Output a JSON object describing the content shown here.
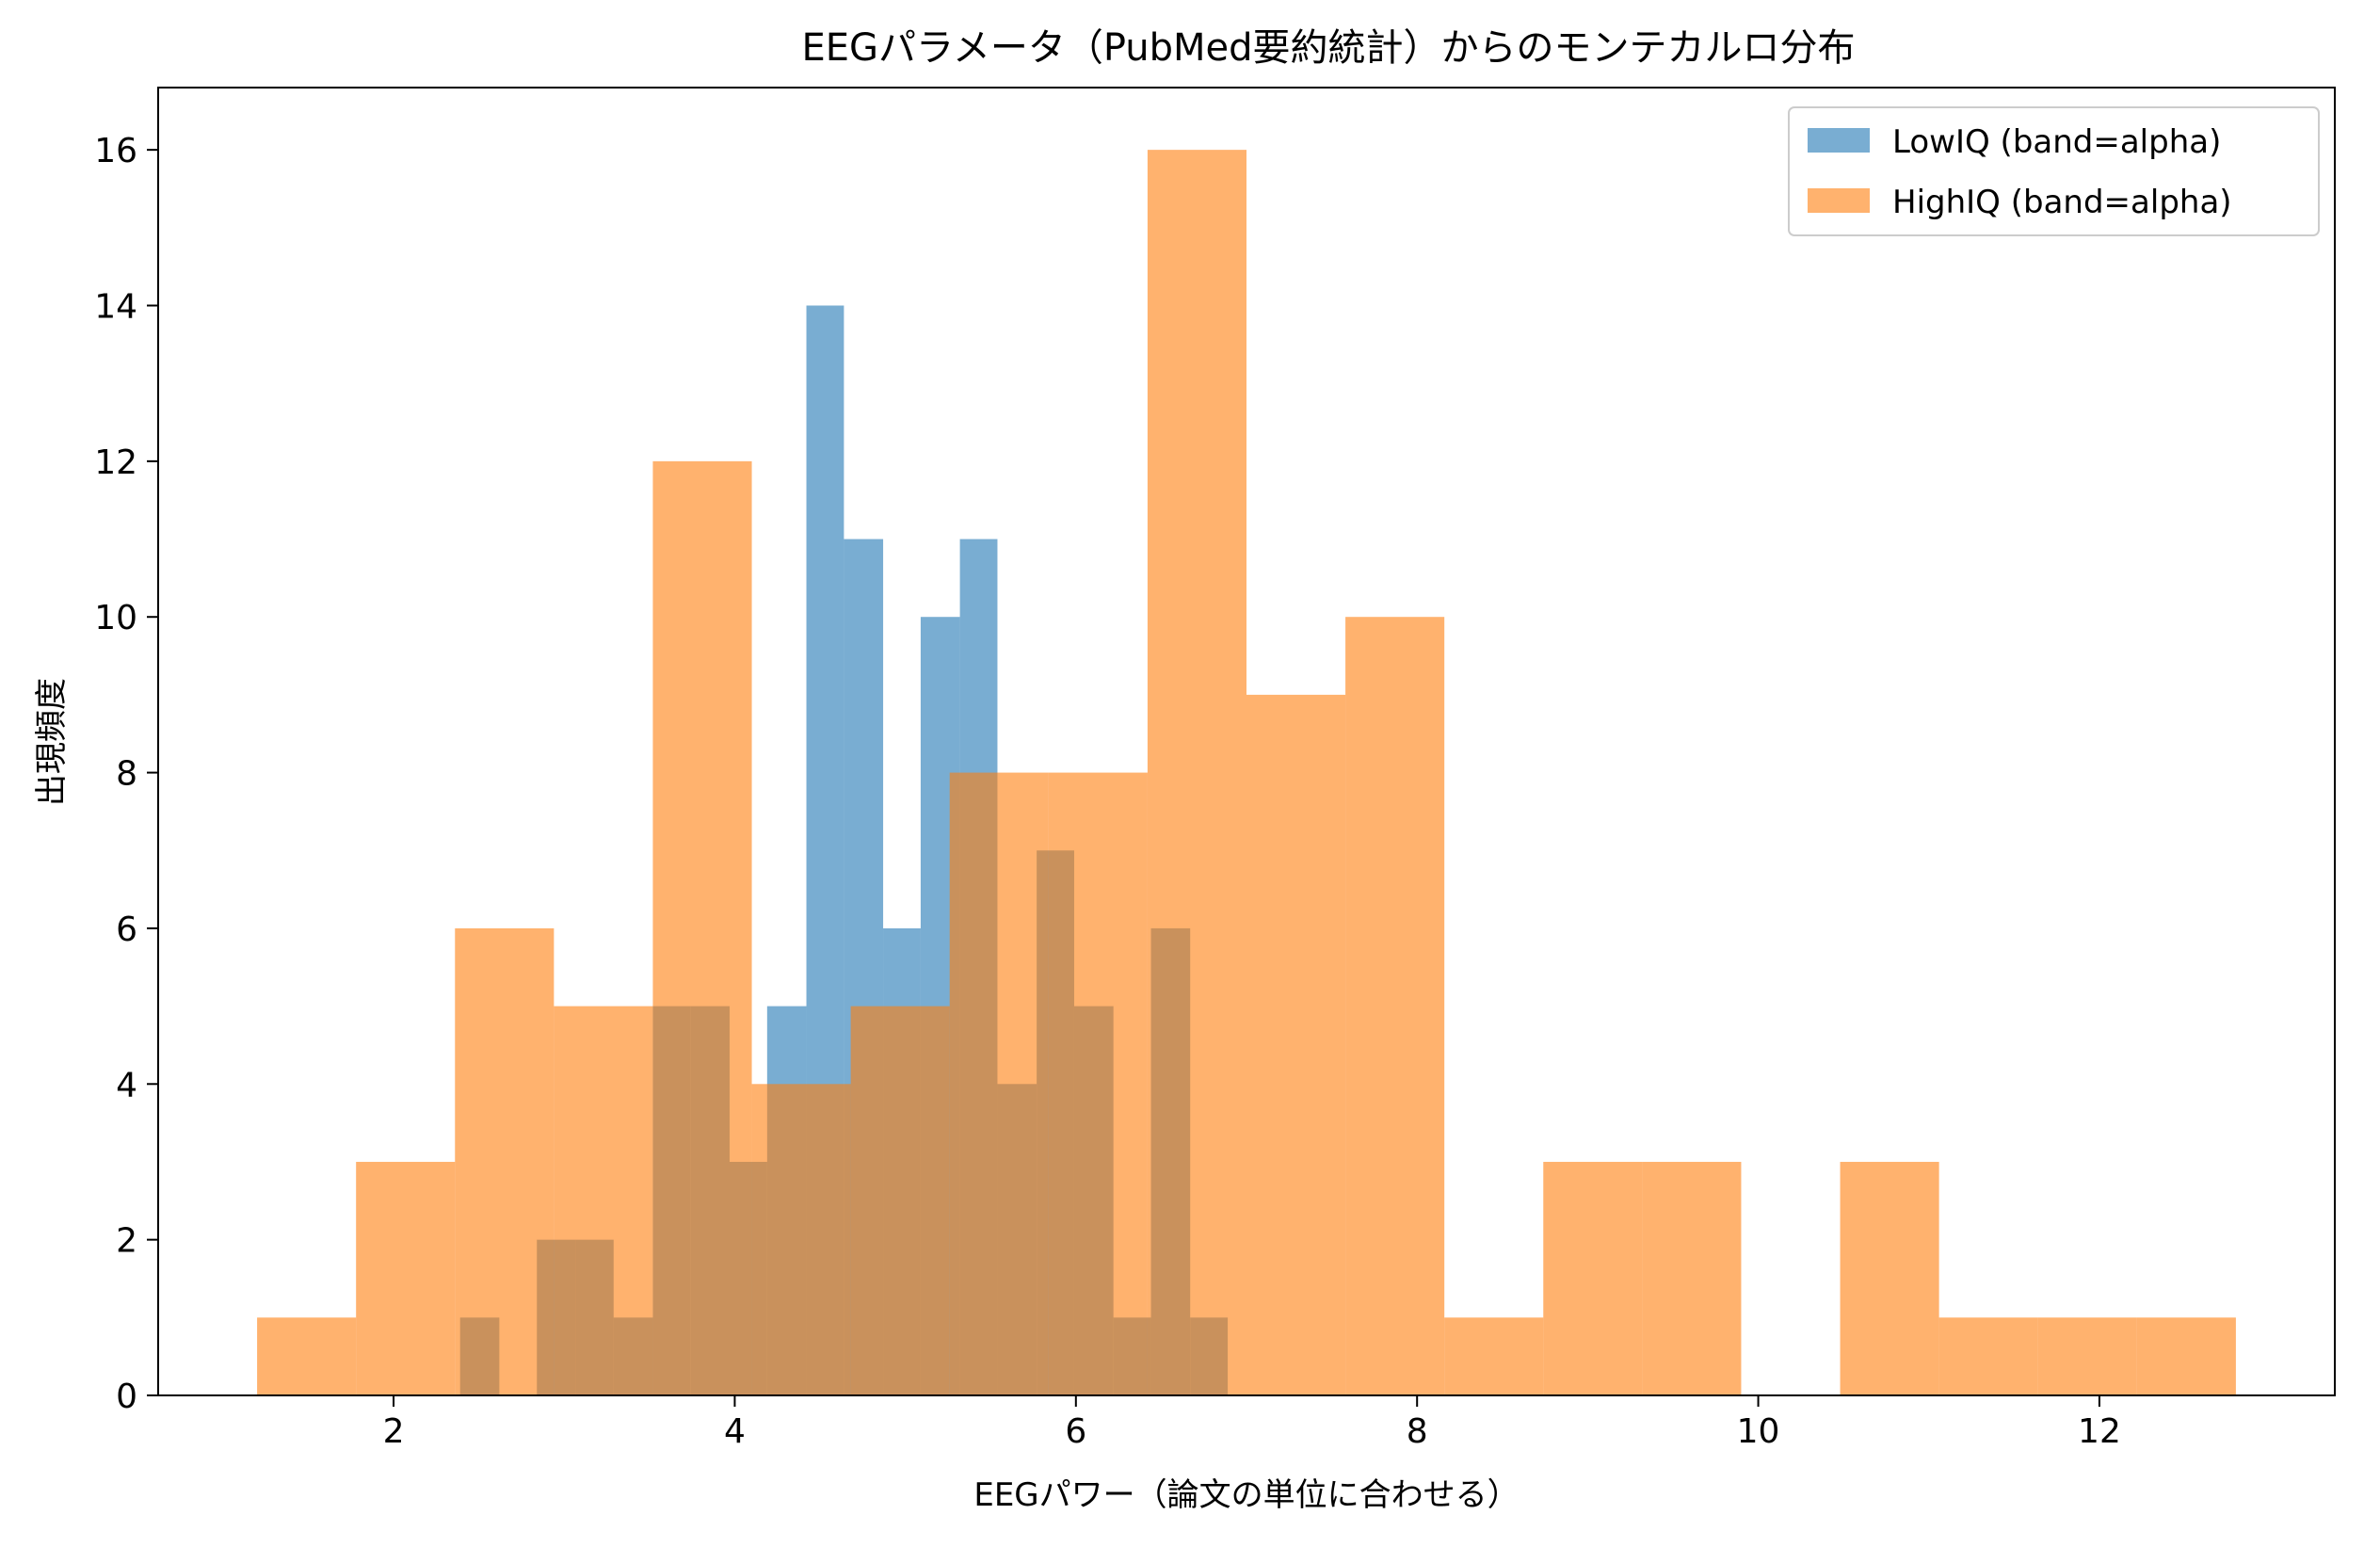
{
  "chart_data": {
    "type": "bar",
    "title": "EEGパラメータ（PubMed要約統計）からのモンテカルロ分布",
    "xlabel": "EEGパワー（論文の単位に合わせる）",
    "ylabel": "出現頻度",
    "xlim": [
      0.62,
      13.38
    ],
    "ylim": [
      0,
      16.8
    ],
    "xticks": [
      "2",
      "4",
      "6",
      "8",
      "10",
      "12"
    ],
    "yticks": [
      "0",
      "2",
      "4",
      "6",
      "8",
      "10",
      "12",
      "14",
      "16"
    ],
    "grid": false,
    "legend_position": "top-right",
    "series": [
      {
        "name": "LowIQ (band=alpha)",
        "color": "#1f77b4",
        "opacity": 0.6,
        "bin_edges": [
          2.39,
          2.62,
          2.84,
          3.07,
          3.29,
          3.52,
          3.74,
          3.97,
          4.19,
          4.42,
          4.64,
          4.87,
          5.09,
          5.32,
          5.54,
          5.77,
          5.99,
          6.22,
          6.44,
          6.67,
          6.89
        ],
        "counts": [
          1,
          0,
          2,
          2,
          1,
          5,
          5,
          3,
          5,
          14,
          11,
          6,
          10,
          11,
          4,
          7,
          5,
          1,
          6,
          1
        ]
      },
      {
        "name": "HighIQ (band=alpha)",
        "color": "#ff7f0e",
        "opacity": 0.6,
        "bin_edges": [
          1.2,
          1.78,
          2.36,
          2.94,
          3.52,
          4.1,
          4.68,
          5.26,
          5.84,
          6.42,
          7.0,
          7.58,
          8.16,
          8.74,
          9.32,
          9.9,
          10.48,
          11.06,
          11.64,
          12.22,
          12.8
        ],
        "counts": [
          1,
          3,
          6,
          5,
          12,
          4,
          5,
          8,
          8,
          16,
          9,
          10,
          1,
          3,
          3,
          0,
          3,
          1,
          1,
          1
        ]
      }
    ]
  }
}
